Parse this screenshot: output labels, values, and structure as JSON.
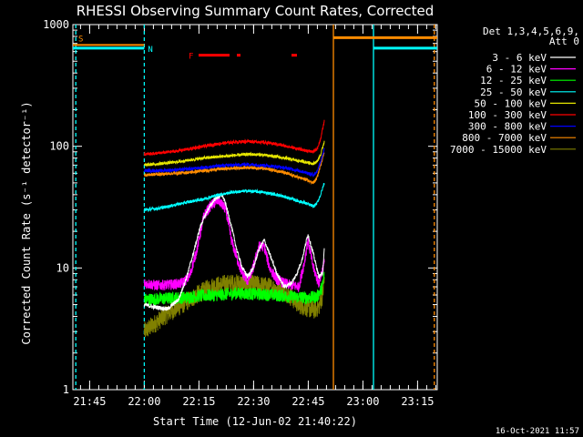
{
  "chart_data": {
    "type": "line",
    "title": "RHESSI Observing Summary Count Rates, Corrected",
    "xlabel": "Start Time (12-Jun-02 21:40:22)",
    "ylabel": "Corrected Count Rate (s⁻¹ detector⁻¹)",
    "yscale": "log",
    "ylim": [
      1,
      1000
    ],
    "xlim_minutes": [
      0,
      100
    ],
    "x_ticks": [
      {
        "label": "21:45",
        "min": 4.6
      },
      {
        "label": "22:00",
        "min": 19.6
      },
      {
        "label": "22:15",
        "min": 34.6
      },
      {
        "label": "22:30",
        "min": 49.6
      },
      {
        "label": "22:45",
        "min": 64.6
      },
      {
        "label": "23:00",
        "min": 79.6
      },
      {
        "label": "23:15",
        "min": 94.6
      }
    ],
    "y_ticks": [
      {
        "label": "1",
        "value": 1
      },
      {
        "label": "10",
        "value": 10
      },
      {
        "label": "100",
        "value": 100
      },
      {
        "label": "1000",
        "value": 1000
      }
    ],
    "legend_header": [
      "Det 1,3,4,5,6,9,",
      "Att 0"
    ],
    "series": [
      {
        "name": "3 - 6 keV",
        "color": "#ffffff",
        "points": [
          [
            19.6,
            5
          ],
          [
            22,
            4.8
          ],
          [
            26,
            4.6
          ],
          [
            29,
            5.5
          ],
          [
            31,
            8
          ],
          [
            33,
            13
          ],
          [
            35,
            22
          ],
          [
            37,
            30
          ],
          [
            39,
            37
          ],
          [
            41,
            40
          ],
          [
            42,
            33
          ],
          [
            43.5,
            22
          ],
          [
            45,
            14
          ],
          [
            46.5,
            10
          ],
          [
            48,
            8.5
          ],
          [
            49.5,
            10
          ],
          [
            51,
            14
          ],
          [
            52.5,
            17
          ],
          [
            54,
            13
          ],
          [
            56,
            9
          ],
          [
            58,
            7
          ],
          [
            60,
            7.5
          ],
          [
            61.5,
            9
          ],
          [
            63,
            12
          ],
          [
            64.5,
            19
          ],
          [
            66,
            13
          ],
          [
            67.5,
            8.5
          ],
          [
            68.5,
            9
          ],
          [
            69,
            14
          ]
        ]
      },
      {
        "name": "6 - 12 keV",
        "color": "#ff00ff",
        "points": [
          [
            19.6,
            7.5
          ],
          [
            23,
            7.2
          ],
          [
            27,
            7.3
          ],
          [
            30,
            7.5
          ],
          [
            32,
            8.5
          ],
          [
            34,
            14
          ],
          [
            36,
            27
          ],
          [
            38,
            33
          ],
          [
            40,
            36
          ],
          [
            42,
            30
          ],
          [
            43.5,
            17
          ],
          [
            45,
            12
          ],
          [
            46.5,
            9
          ],
          [
            48,
            7.8
          ],
          [
            49.5,
            10
          ],
          [
            51,
            15
          ],
          [
            52.5,
            15
          ],
          [
            54,
            10
          ],
          [
            56,
            8
          ],
          [
            58,
            7.5
          ],
          [
            60,
            7.2
          ],
          [
            62,
            7
          ],
          [
            63.5,
            11
          ],
          [
            64.5,
            17
          ],
          [
            66,
            10
          ],
          [
            67.5,
            7.5
          ],
          [
            69,
            11
          ]
        ]
      },
      {
        "name": "12 - 25 keV",
        "color": "#00ff00",
        "points": [
          [
            19.6,
            5.5
          ],
          [
            25,
            5.6
          ],
          [
            30,
            5.7
          ],
          [
            35,
            5.9
          ],
          [
            40,
            6
          ],
          [
            45,
            6.2
          ],
          [
            50,
            6.1
          ],
          [
            55,
            6
          ],
          [
            60,
            5.8
          ],
          [
            65,
            5.7
          ],
          [
            67,
            5.8
          ],
          [
            68.5,
            7
          ],
          [
            69,
            9
          ]
        ]
      },
      {
        "name": "25 - 50 keV",
        "color": "#00ffff",
        "points": [
          [
            19.6,
            30
          ],
          [
            24,
            31
          ],
          [
            28,
            33
          ],
          [
            32,
            35
          ],
          [
            36,
            37
          ],
          [
            40,
            40
          ],
          [
            44,
            42
          ],
          [
            48,
            43
          ],
          [
            52,
            42
          ],
          [
            56,
            40
          ],
          [
            60,
            37
          ],
          [
            64,
            34
          ],
          [
            66,
            32
          ],
          [
            67,
            34
          ],
          [
            68,
            40
          ],
          [
            69,
            50
          ]
        ]
      },
      {
        "name": "50 - 100 keV",
        "color": "#e6e600",
        "points": [
          [
            19.6,
            70
          ],
          [
            24,
            72
          ],
          [
            28,
            74
          ],
          [
            32,
            77
          ],
          [
            36,
            80
          ],
          [
            40,
            82
          ],
          [
            44,
            84
          ],
          [
            48,
            86
          ],
          [
            52,
            85
          ],
          [
            56,
            82
          ],
          [
            60,
            78
          ],
          [
            64,
            74
          ],
          [
            66,
            72
          ],
          [
            67,
            75
          ],
          [
            68,
            85
          ],
          [
            69,
            110
          ]
        ]
      },
      {
        "name": "100 - 300 keV",
        "color": "#ff0000",
        "points": [
          [
            19.6,
            86
          ],
          [
            24,
            88
          ],
          [
            28,
            91
          ],
          [
            32,
            95
          ],
          [
            36,
            100
          ],
          [
            40,
            105
          ],
          [
            44,
            108
          ],
          [
            48,
            110
          ],
          [
            52,
            108
          ],
          [
            56,
            104
          ],
          [
            60,
            98
          ],
          [
            64,
            92
          ],
          [
            66,
            90
          ],
          [
            67,
            95
          ],
          [
            68,
            115
          ],
          [
            69,
            160
          ]
        ]
      },
      {
        "name": "300 - 800 keV",
        "color": "#0000ff",
        "points": [
          [
            19.6,
            63
          ],
          [
            24,
            63
          ],
          [
            28,
            64
          ],
          [
            32,
            65
          ],
          [
            36,
            67
          ],
          [
            40,
            69
          ],
          [
            44,
            70
          ],
          [
            48,
            71
          ],
          [
            52,
            70
          ],
          [
            56,
            68
          ],
          [
            60,
            65
          ],
          [
            64,
            61
          ],
          [
            66,
            58
          ],
          [
            67,
            62
          ],
          [
            68,
            75
          ],
          [
            69,
            95
          ]
        ]
      },
      {
        "name": "800 - 7000 keV",
        "color": "#ff8c00",
        "points": [
          [
            19.6,
            58
          ],
          [
            24,
            59
          ],
          [
            28,
            60
          ],
          [
            32,
            61
          ],
          [
            36,
            63
          ],
          [
            40,
            65
          ],
          [
            44,
            66
          ],
          [
            48,
            67
          ],
          [
            52,
            66
          ],
          [
            56,
            63
          ],
          [
            60,
            58
          ],
          [
            64,
            53
          ],
          [
            66,
            50
          ],
          [
            67,
            55
          ],
          [
            68,
            70
          ],
          [
            69,
            90
          ]
        ]
      },
      {
        "name": "7000 - 15000 keV",
        "color": "#808000",
        "points": [
          [
            19.6,
            3
          ],
          [
            22,
            3.4
          ],
          [
            26,
            4.2
          ],
          [
            30,
            5
          ],
          [
            34,
            6
          ],
          [
            38,
            7
          ],
          [
            42,
            7.4
          ],
          [
            46,
            7.5
          ],
          [
            50,
            7.3
          ],
          [
            54,
            7
          ],
          [
            58,
            6.5
          ],
          [
            62,
            5
          ],
          [
            66,
            4.5
          ],
          [
            67.5,
            4.8
          ],
          [
            68.5,
            6
          ],
          [
            69,
            8
          ]
        ]
      }
    ],
    "markers": {
      "saa": {
        "label": "S",
        "color": "#ff8c00",
        "start_min": 0,
        "end_min": 19.6,
        "value": 680
      },
      "saa_right": {
        "color": "#ff8c00",
        "start_min": 71.5,
        "end_min": 100,
        "value": 780
      },
      "night": {
        "label": "N",
        "color": "#00ffff",
        "segments": [
          [
            0,
            19.6
          ],
          [
            82.5,
            100
          ]
        ],
        "value": 640
      },
      "flare": {
        "label": "F",
        "color": "#ff0000",
        "segments": [
          [
            34.5,
            43
          ],
          [
            45,
            46
          ],
          [
            60,
            61.5
          ]
        ],
        "value": 560
      },
      "vlines": [
        {
          "min": 0.8,
          "color": "#00ffff",
          "dashed": true
        },
        {
          "min": 19.6,
          "color": "#00ffff",
          "dashed": true
        },
        {
          "min": 71.5,
          "color": "#ff8c00",
          "dashed": false
        },
        {
          "min": 82.5,
          "color": "#00ffff",
          "dashed": false
        },
        {
          "min": 99.2,
          "color": "#ff8c00",
          "dashed": true
        }
      ]
    }
  },
  "footer_date": "16-Oct-2021 11:57"
}
